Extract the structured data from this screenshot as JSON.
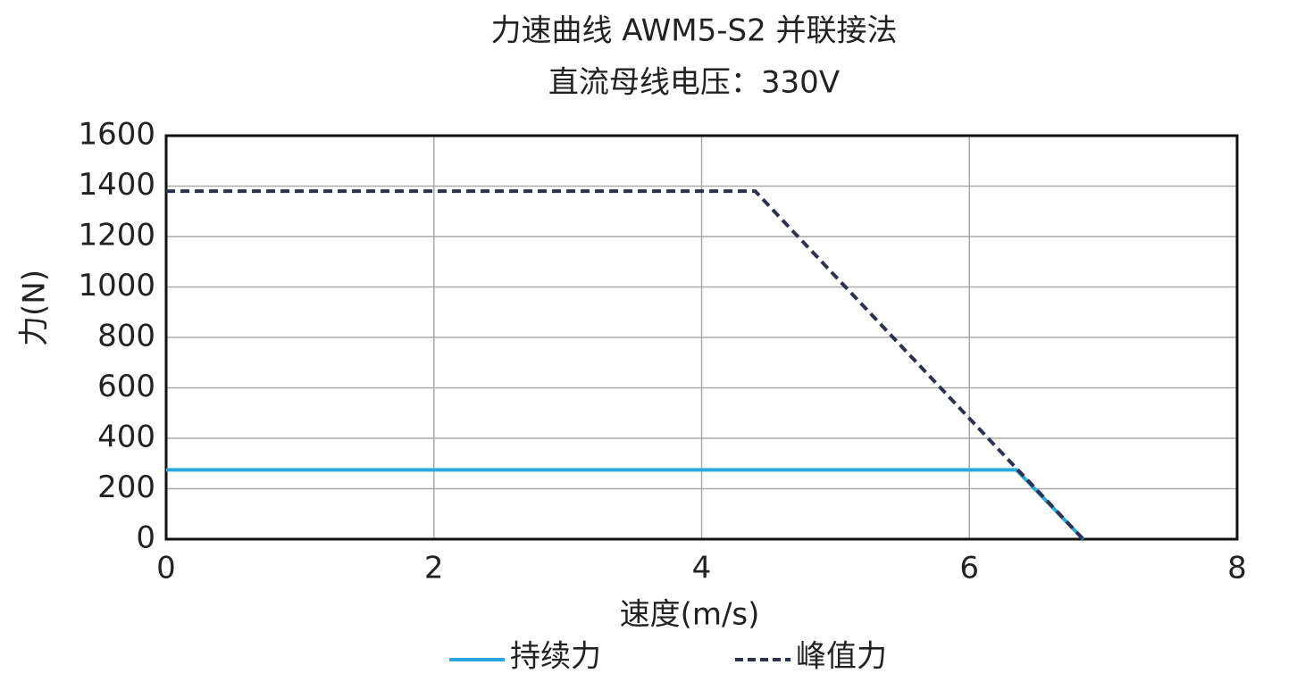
{
  "chart_data": {
    "type": "line",
    "title": "力速曲线 AWM5-S2 并联接法",
    "subtitle": "直流母线电压：330V",
    "x_label": "速度(m/s)",
    "y_label": "力(N)",
    "xlim": [
      0,
      8
    ],
    "xticks": [
      0,
      2,
      4,
      6,
      8
    ],
    "ylim": [
      0,
      1600
    ],
    "yticks": [
      0,
      200,
      400,
      600,
      800,
      1000,
      1200,
      1400,
      1600
    ],
    "grid": true,
    "legend": "bottom",
    "series": [
      {
        "name": "持续力",
        "color": "#29a8e0",
        "linestyle": "solid",
        "x": [
          0,
          6.35,
          6.85
        ],
        "values": [
          275,
          275,
          0
        ]
      },
      {
        "name": "峰值力",
        "color": "#2d3252",
        "linestyle": "dashed",
        "x": [
          0,
          4.4,
          6.85
        ],
        "values": [
          1380,
          1380,
          0
        ]
      }
    ]
  }
}
